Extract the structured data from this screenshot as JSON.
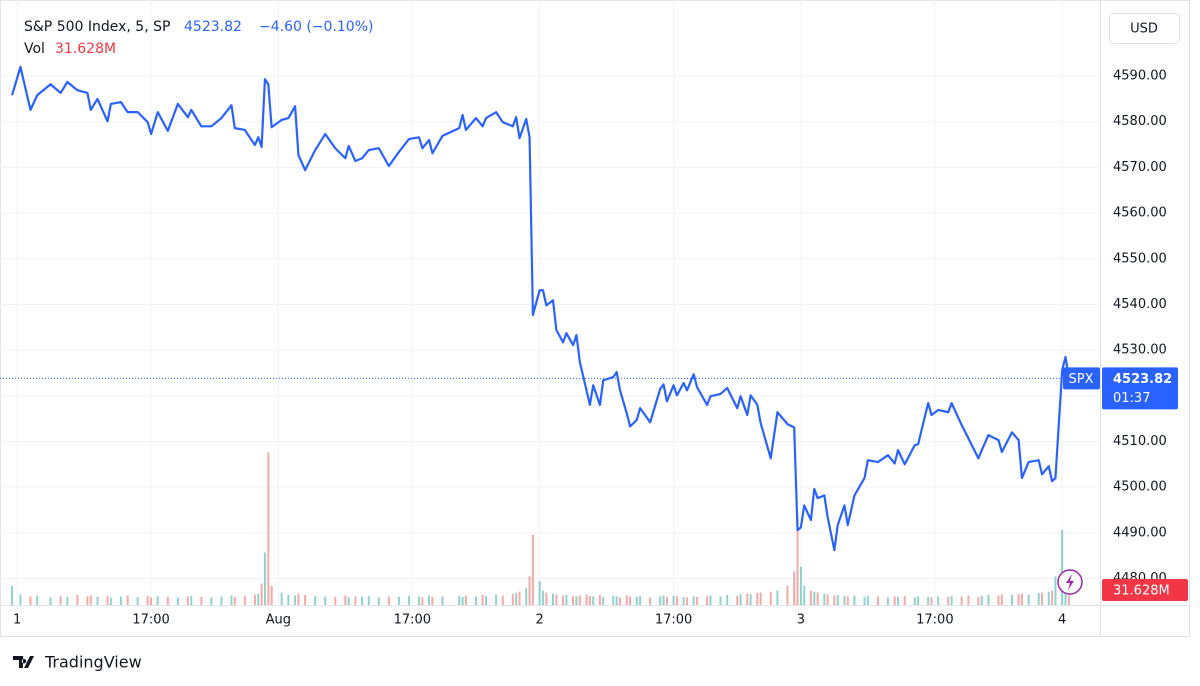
{
  "chart_data": {
    "type": "line",
    "title": "S&P 500 Index, 5, SP",
    "change_label": "−4.60 (−0.10%)",
    "volume_label": "Vol",
    "volume_last_label": "31.628M",
    "currency": "USD",
    "symbol": "SPX",
    "countdown": "01:37",
    "branding": "TradingView",
    "color": "#2962ff",
    "grid": true,
    "xlim": [
      -5.1,
      323.3
    ],
    "xticks": [
      {
        "value": 0,
        "label": "1"
      },
      {
        "value": 40,
        "label": "17:00"
      },
      {
        "value": 78,
        "label": "Aug"
      },
      {
        "value": 118,
        "label": "17:00"
      },
      {
        "value": 156,
        "label": "2"
      },
      {
        "value": 196,
        "label": "17:00"
      },
      {
        "value": 234,
        "label": "3"
      },
      {
        "value": 274,
        "label": "17:00"
      },
      {
        "value": 312,
        "label": "4"
      }
    ],
    "ylim": [
      4474.2,
      4604.9
    ],
    "yticks": [
      {
        "value": 4480,
        "label": "4480.00"
      },
      {
        "value": 4490,
        "label": "4490.00"
      },
      {
        "value": 4500,
        "label": "4500.00"
      },
      {
        "value": 4510,
        "label": "4510.00"
      },
      {
        "value": 4520,
        "label": "4520.00"
      },
      {
        "value": 4530,
        "label": "4530.00"
      },
      {
        "value": 4540,
        "label": "4540.00"
      },
      {
        "value": 4550,
        "label": "4550.00"
      },
      {
        "value": 4560,
        "label": "4560.00"
      },
      {
        "value": 4570,
        "label": "4570.00"
      },
      {
        "value": 4580,
        "label": "4580.00"
      },
      {
        "value": 4590,
        "label": "4590.00"
      }
    ],
    "x": [
      -1.5,
      1,
      4,
      6,
      10,
      13,
      15,
      18,
      21,
      22,
      24,
      27,
      28,
      31,
      33,
      36,
      39,
      40,
      42,
      45,
      48,
      51,
      52,
      55,
      58,
      61,
      64,
      65,
      68,
      71,
      72,
      73,
      74,
      75,
      76,
      79,
      81,
      83,
      84,
      86,
      89,
      92,
      95,
      98,
      99,
      101,
      103,
      105,
      108,
      111,
      114,
      117,
      120,
      121,
      123,
      124,
      127,
      132,
      133,
      134,
      137,
      139,
      140,
      143,
      145,
      148,
      149,
      150,
      152,
      153,
      154,
      156,
      157,
      158,
      160,
      161,
      163,
      164,
      166,
      167,
      168,
      170,
      171,
      172,
      174,
      175,
      178,
      179,
      180,
      182,
      183,
      185,
      186,
      189,
      192,
      193,
      194,
      196,
      197,
      199,
      200,
      202,
      203,
      206,
      207,
      210,
      212,
      215,
      216,
      218,
      219,
      221,
      222,
      225,
      227,
      230,
      232,
      233,
      234,
      235,
      237,
      238,
      239,
      241,
      242,
      244,
      245,
      247,
      248,
      250,
      253,
      254,
      257,
      260,
      262,
      263,
      265,
      268,
      269,
      272,
      273,
      275,
      278,
      279,
      282,
      284,
      287,
      288,
      290,
      293,
      294,
      297,
      299,
      300,
      302,
      305,
      306,
      308,
      309,
      310,
      312,
      313,
      314
    ],
    "values": [
      4585.8,
      4592.0,
      4582.6,
      4585.8,
      4588.2,
      4586.3,
      4588.7,
      4586.9,
      4586.3,
      4582.6,
      4585.0,
      4580.1,
      4583.9,
      4584.3,
      4582.1,
      4582.1,
      4579.9,
      4577.3,
      4582.1,
      4578.0,
      4583.9,
      4581.0,
      4582.6,
      4579.0,
      4579.0,
      4580.8,
      4583.6,
      4578.6,
      4578.2,
      4574.9,
      4576.6,
      4574.5,
      4589.3,
      4588.2,
      4578.8,
      4580.4,
      4580.8,
      4583.4,
      4572.7,
      4569.4,
      4573.8,
      4577.3,
      4574.2,
      4572.0,
      4574.7,
      4571.4,
      4572.0,
      4573.8,
      4574.2,
      4570.3,
      4573.4,
      4576.2,
      4576.6,
      4574.2,
      4576.0,
      4573.1,
      4576.9,
      4578.6,
      4581.5,
      4578.2,
      4580.8,
      4579.0,
      4580.8,
      4582.1,
      4579.9,
      4579.0,
      4581.0,
      4576.4,
      4580.6,
      4576.6,
      4537.7,
      4543.1,
      4543.1,
      4539.8,
      4540.9,
      4534.4,
      4531.7,
      4533.7,
      4531.1,
      4533.3,
      4527.4,
      4521.2,
      4518.0,
      4522.3,
      4518.0,
      4523.4,
      4524.1,
      4525.2,
      4521.2,
      4516.2,
      4513.3,
      4514.7,
      4517.3,
      4514.2,
      4521.5,
      4522.5,
      4518.8,
      4522.3,
      4520.1,
      4522.8,
      4521.2,
      4524.7,
      4521.9,
      4518.0,
      4519.9,
      4520.4,
      4521.7,
      4517.3,
      4519.9,
      4515.8,
      4520.1,
      4518.0,
      4514.0,
      4506.3,
      4516.4,
      4513.8,
      4513.1,
      4490.6,
      4491.2,
      4496.0,
      4492.8,
      4499.6,
      4497.6,
      4498.2,
      4493.4,
      4486.2,
      4491.7,
      4496.0,
      4491.7,
      4498.2,
      4502.0,
      4505.9,
      4505.5,
      4507.0,
      4505.2,
      4508.1,
      4505.0,
      4509.2,
      4509.4,
      4518.4,
      4515.8,
      4516.9,
      4516.4,
      4518.4,
      4513.6,
      4510.7,
      4506.3,
      4508.1,
      4511.4,
      4510.3,
      4507.7,
      4512.0,
      4510.3,
      4502.0,
      4505.5,
      4505.9,
      4502.8,
      4504.6,
      4501.3,
      4502.0,
      4525.6,
      4528.5,
      4523.82
    ],
    "volume_ylim": [
      0,
      1250
    ],
    "volume": [
      40,
      22,
      18,
      20,
      16,
      19,
      17,
      21,
      18,
      20,
      17,
      19,
      16,
      18,
      20,
      17,
      19,
      16,
      18,
      17,
      16,
      18,
      19,
      17,
      16,
      18,
      20,
      17,
      19,
      22,
      24,
      45,
      110,
      320,
      40,
      26,
      22,
      20,
      24,
      21,
      19,
      18,
      17,
      20,
      16,
      18,
      17,
      19,
      16,
      18,
      17,
      19,
      18,
      16,
      20,
      17,
      18,
      19,
      17,
      20,
      18,
      21,
      19,
      22,
      20,
      23,
      25,
      28,
      35,
      60,
      147,
      50,
      30,
      26,
      24,
      22,
      20,
      21,
      19,
      18,
      20,
      22,
      19,
      18,
      21,
      17,
      19,
      18,
      16,
      20,
      18,
      17,
      19,
      16,
      18,
      20,
      17,
      19,
      18,
      17,
      16,
      18,
      17,
      19,
      20,
      18,
      21,
      19,
      22,
      24,
      23,
      25,
      26,
      28,
      30,
      40,
      70,
      183,
      80,
      40,
      30,
      28,
      26,
      24,
      22,
      20,
      21,
      19,
      18,
      20,
      17,
      19,
      18,
      16,
      18,
      17,
      19,
      16,
      18,
      17,
      16,
      18,
      17,
      19,
      18,
      20,
      17,
      19,
      21,
      20,
      22,
      21,
      23,
      24,
      22,
      25,
      26,
      28,
      30,
      60,
      157,
      50,
      31.628
    ]
  }
}
